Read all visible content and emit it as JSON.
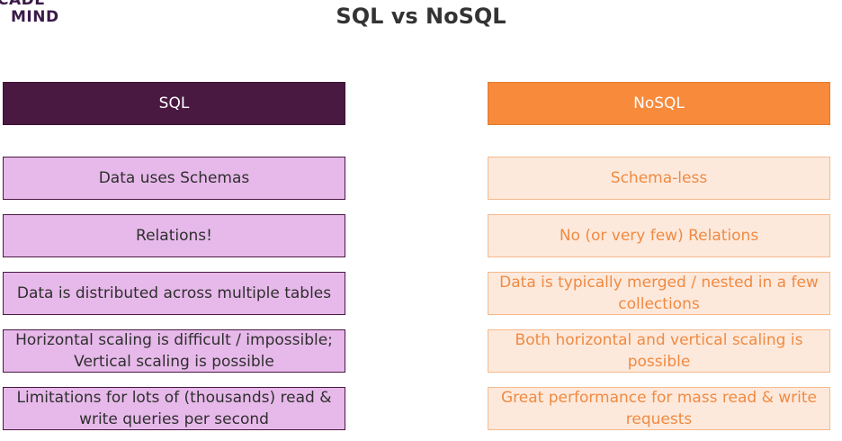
{
  "logo": {
    "line1": "CADE",
    "line2": "MIND"
  },
  "title": "SQL vs NoSQL",
  "sql": {
    "header": "SQL",
    "rows": [
      "Data uses Schemas",
      "Relations!",
      "Data is distributed across multiple tables",
      "Horizontal scaling is difficult / impossible; Vertical scaling is possible",
      "Limitations for lots of (thousands) read & write queries per second"
    ]
  },
  "nosql": {
    "header": "NoSQL",
    "rows": [
      "Schema-less",
      "No (or very few) Relations",
      "Data is typically merged / nested in a few collections",
      "Both horizontal and vertical scaling is possible",
      "Great performance for mass read & write requests"
    ]
  },
  "colors": {
    "sql_header": "#4a1942",
    "sql_cell": "#e7b9ea",
    "nosql_header": "#f88a3c",
    "nosql_cell": "#fde9dc",
    "nosql_text": "#f08a42"
  }
}
